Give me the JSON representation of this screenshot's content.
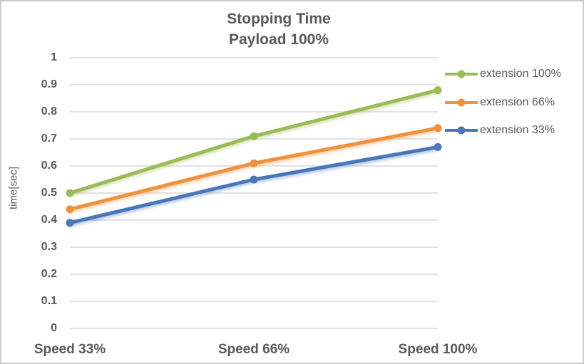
{
  "chart_data": {
    "type": "line",
    "title": "Stopping Time",
    "subtitle": "Payload 100%",
    "categories": [
      "Speed 33%",
      "Speed 66%",
      "Speed 100%"
    ],
    "series": [
      {
        "name": "extension 100%",
        "color": "#9BBB59",
        "values": [
          0.5,
          0.71,
          0.88
        ]
      },
      {
        "name": "extension 66%",
        "color": "#F0913C",
        "values": [
          0.44,
          0.61,
          0.74
        ]
      },
      {
        "name": "extension 33%",
        "color": "#4A77B8",
        "values": [
          0.39,
          0.55,
          0.67
        ]
      }
    ],
    "xlabel": "",
    "ylabel": "time[sec]",
    "ylim": [
      0,
      1
    ],
    "ytick_step": 0.1,
    "ytick_labels": [
      "0",
      "0.1",
      "0.2",
      "0.3",
      "0.4",
      "0.5",
      "0.6",
      "0.7",
      "0.8",
      "0.9",
      "1"
    ],
    "grid": true,
    "legend_position": "right"
  },
  "colors": {
    "text": "#595959",
    "grid": "#D9D9D9",
    "border": "#CBCBCB",
    "background": "#FFFFFF"
  }
}
